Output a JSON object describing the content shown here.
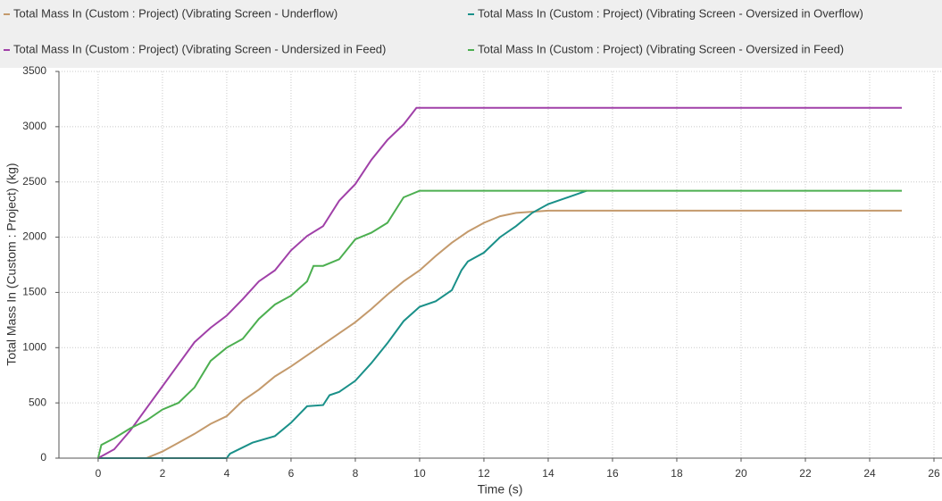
{
  "chart_data": {
    "type": "line",
    "xlabel": "Time (s)",
    "ylabel": "Total Mass In (Custom : Project) (kg)",
    "xlim": [
      -1.22,
      26.25
    ],
    "ylim": [
      0,
      3500
    ],
    "xticks": [
      0,
      2,
      4,
      6,
      8,
      10,
      12,
      14,
      16,
      18,
      20,
      22,
      24,
      26
    ],
    "yticks": [
      0,
      500,
      1000,
      1500,
      2000,
      2500,
      3000,
      3500
    ],
    "grid": true,
    "series": [
      {
        "name": "Total Mass In (Custom : Project) (Vibrating Screen - Underflow)",
        "color": "#c49a6c",
        "x": [
          0,
          1.5,
          2,
          2.5,
          3,
          3.5,
          4,
          4.5,
          5,
          5.5,
          6,
          6.5,
          7,
          7.5,
          8,
          8.5,
          9,
          9.5,
          10,
          10.5,
          11,
          11.5,
          12,
          12.5,
          13,
          14,
          25
        ],
        "values": [
          0,
          0,
          60,
          140,
          220,
          310,
          380,
          520,
          620,
          740,
          830,
          930,
          1030,
          1130,
          1230,
          1350,
          1480,
          1600,
          1700,
          1830,
          1950,
          2050,
          2130,
          2190,
          2220,
          2240,
          2240
        ]
      },
      {
        "name": "Total Mass In (Custom : Project) (Vibrating Screen - Oversized in Overflow)",
        "color": "#1a9089",
        "x": [
          0,
          4,
          4.1,
          4.8,
          5.5,
          6,
          6.5,
          7,
          7.2,
          7.5,
          8,
          8.5,
          9,
          9.5,
          10,
          10.5,
          11,
          11.3,
          11.5,
          12,
          12.5,
          13,
          13.5,
          14,
          14.5,
          15,
          15.2
        ],
        "values": [
          0,
          0,
          40,
          140,
          200,
          320,
          470,
          480,
          570,
          600,
          700,
          860,
          1040,
          1240,
          1370,
          1420,
          1520,
          1700,
          1780,
          1860,
          2000,
          2100,
          2220,
          2300,
          2350,
          2400,
          2420
        ]
      },
      {
        "name": "Total Mass In (Custom : Project) (Vibrating Screen - Undersized in Feed)",
        "color": "#a040a8",
        "x": [
          0,
          0.5,
          1,
          1.5,
          2,
          2.5,
          3,
          3.5,
          4,
          4.5,
          5,
          5.5,
          6,
          6.5,
          7,
          7.5,
          8,
          8.5,
          9,
          9.5,
          9.9,
          25
        ],
        "values": [
          0,
          80,
          250,
          450,
          650,
          850,
          1050,
          1180,
          1290,
          1440,
          1600,
          1700,
          1880,
          2010,
          2100,
          2330,
          2480,
          2700,
          2880,
          3020,
          3170,
          3170
        ]
      },
      {
        "name": "Total Mass In (Custom : Project) (Vibrating Screen - Oversized in Feed)",
        "color": "#4caf50",
        "x": [
          0,
          0.1,
          0.5,
          1,
          1.5,
          2,
          2.5,
          3,
          3.5,
          4,
          4.5,
          5,
          5.5,
          6,
          6.5,
          6.7,
          7,
          7.5,
          8,
          8.5,
          9,
          9.5,
          10,
          25
        ],
        "values": [
          0,
          120,
          180,
          270,
          340,
          440,
          500,
          640,
          880,
          1000,
          1080,
          1260,
          1390,
          1470,
          1600,
          1740,
          1740,
          1800,
          1980,
          2040,
          2130,
          2360,
          2420,
          2420
        ]
      }
    ]
  }
}
